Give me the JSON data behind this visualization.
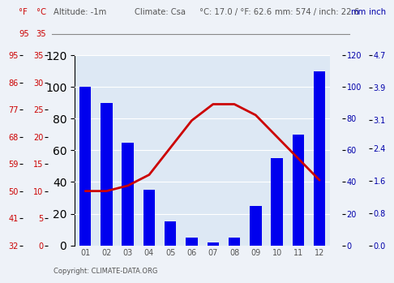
{
  "months": [
    "01",
    "02",
    "03",
    "04",
    "05",
    "06",
    "07",
    "08",
    "09",
    "10",
    "11",
    "12"
  ],
  "precipitation_mm": [
    100,
    90,
    65,
    35,
    15,
    5,
    2,
    5,
    25,
    55,
    70,
    110
  ],
  "water_temp_c": [
    10,
    10,
    11,
    13,
    18,
    23,
    26,
    26,
    24,
    20,
    16,
    12
  ],
  "bar_color": "#0000ee",
  "line_color": "#cc0000",
  "yticks_c": [
    0,
    5,
    10,
    15,
    20,
    25,
    30,
    35
  ],
  "yticks_f": [
    32,
    41,
    50,
    59,
    68,
    77,
    86,
    95
  ],
  "yticks_mm": [
    0,
    20,
    40,
    60,
    80,
    100,
    120
  ],
  "yticks_inch": [
    "0.0",
    "0.8",
    "1.6",
    "2.4",
    "3.1",
    "3.9",
    "4.7"
  ],
  "ylim_c": [
    0,
    35
  ],
  "ylim_mm": [
    0,
    120
  ],
  "copyright": "Copyright: CLIMATE-DATA.ORG",
  "background_color": "#eef2f8",
  "plot_bg_color": "#dde8f4",
  "grid_color": "#ffffff",
  "header_color_label": "#cc0000",
  "header_color_text": "#555555",
  "right_label_color": "#0000aa",
  "tick_color": "#555555"
}
